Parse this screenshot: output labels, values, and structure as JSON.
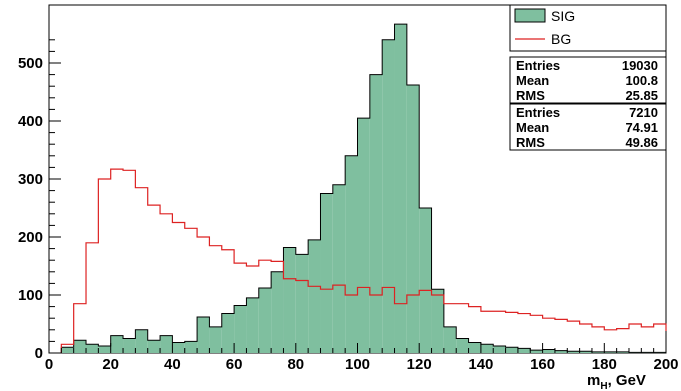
{
  "chart_data": {
    "type": "histogram",
    "xlabel": {
      "main": "m",
      "sub": "H",
      "rest": ", GeV"
    },
    "xlim": [
      0,
      200
    ],
    "ylim": [
      0,
      600
    ],
    "xticks": [
      "0",
      "20",
      "40",
      "60",
      "80",
      "100",
      "120",
      "140",
      "160",
      "180",
      "200"
    ],
    "yticks": [
      "0",
      "100",
      "200",
      "300",
      "400",
      "500"
    ],
    "bin_width": 4,
    "bin_start": 4,
    "series": [
      {
        "name": "SIG",
        "style": "filled",
        "fill": "#7fbf9f",
        "stroke": "#000000",
        "values": [
          10,
          22,
          15,
          12,
          30,
          25,
          40,
          22,
          30,
          18,
          20,
          62,
          45,
          68,
          82,
          95,
          112,
          140,
          182,
          170,
          195,
          275,
          290,
          340,
          405,
          480,
          540,
          567,
          462,
          250,
          110,
          45,
          25,
          18,
          15,
          12,
          10,
          8,
          5,
          6,
          4,
          3,
          3,
          2,
          2,
          2,
          1,
          1,
          1
        ]
      },
      {
        "name": "BG",
        "style": "step",
        "stroke": "#dd2222",
        "values": [
          15,
          85,
          190,
          300,
          317,
          315,
          285,
          255,
          240,
          225,
          215,
          200,
          185,
          178,
          155,
          150,
          160,
          158,
          128,
          125,
          115,
          110,
          117,
          100,
          113,
          100,
          113,
          85,
          100,
          108,
          100,
          85,
          85,
          80,
          72,
          72,
          70,
          68,
          65,
          60,
          58,
          55,
          50,
          45,
          40,
          42,
          50,
          45,
          50,
          38
        ]
      }
    ],
    "legend": {
      "position": "top-right",
      "entries": [
        "SIG",
        "BG"
      ]
    },
    "stats": [
      {
        "rows": [
          {
            "label": "Entries",
            "value": "19030"
          },
          {
            "label": "Mean",
            "value": "100.8"
          },
          {
            "label": "RMS",
            "value": "25.85"
          }
        ]
      },
      {
        "rows": [
          {
            "label": "Entries",
            "value": "7210"
          },
          {
            "label": "Mean",
            "value": "74.91"
          },
          {
            "label": "RMS",
            "value": "49.86"
          }
        ]
      }
    ]
  }
}
